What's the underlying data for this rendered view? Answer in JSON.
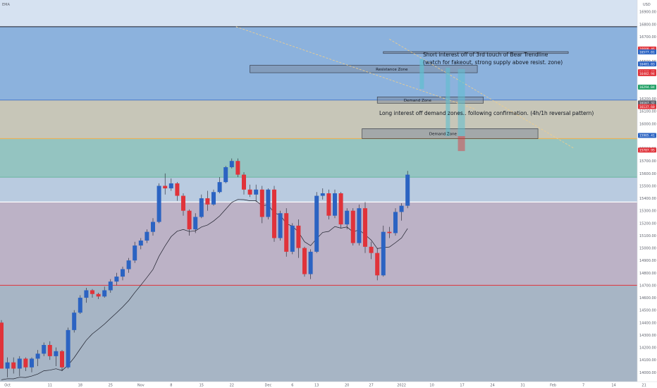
{
  "header": {
    "indicator": "EMA",
    "currency": "USD"
  },
  "chart_data": {
    "type": "candlestick",
    "ylim": [
      13925,
      16995
    ],
    "y_ticks": [
      14000,
      14100,
      14200,
      14300,
      14400,
      14500,
      14600,
      14700,
      14800,
      14900,
      15000,
      15100,
      15200,
      15300,
      15400,
      15500,
      15600,
      15700,
      15800,
      15900,
      16000,
      16100,
      16200,
      16300,
      16400,
      16500,
      16600,
      16700,
      16800,
      16900
    ],
    "y_tick_labels": [
      "14000.00",
      "14100.00",
      "14200.00",
      "14300.00",
      "14400.00",
      "14500.00",
      "14600.00",
      "14700.00",
      "14800.00",
      "14900.00",
      "15000.00",
      "15100.00",
      "15200.00",
      "15300.00",
      "15400.00",
      "15500.00",
      "15600.00",
      "15700.00",
      "15800.00",
      "15900.00",
      "16000.00",
      "16100.00",
      "16200.00",
      "16300.00",
      "16400.00",
      "16500.00",
      "16600.00",
      "16700.00",
      "16800.00",
      "16900.00"
    ],
    "x_ticks": [
      {
        "label": "Oct",
        "bar": 1
      },
      {
        "label": "11",
        "bar": 8
      },
      {
        "label": "18",
        "bar": 13
      },
      {
        "label": "25",
        "bar": 18
      },
      {
        "label": "Nov",
        "bar": 23
      },
      {
        "label": "8",
        "bar": 28
      },
      {
        "label": "15",
        "bar": 33
      },
      {
        "label": "22",
        "bar": 38
      },
      {
        "label": "Dec",
        "bar": 44
      },
      {
        "label": "6",
        "bar": 48
      },
      {
        "label": "13",
        "bar": 52
      },
      {
        "label": "20",
        "bar": 57
      },
      {
        "label": "27",
        "bar": 61
      },
      {
        "label": "2022",
        "bar": 66
      },
      {
        "label": "10",
        "bar": 71
      },
      {
        "label": "17",
        "bar": 76
      },
      {
        "label": "24",
        "bar": 81
      },
      {
        "label": "31",
        "bar": 86
      },
      {
        "label": "Feb",
        "bar": 91
      },
      {
        "label": "7",
        "bar": 96
      },
      {
        "label": "14",
        "bar": 101
      },
      {
        "label": "21",
        "bar": 106
      }
    ],
    "candles": [
      [
        14400,
        14420,
        14030,
        14030
      ],
      [
        14030,
        14120,
        13960,
        14080
      ],
      [
        14080,
        14120,
        13990,
        14030
      ],
      [
        14030,
        14130,
        13970,
        14110
      ],
      [
        14110,
        14120,
        14010,
        14040
      ],
      [
        14040,
        14120,
        14000,
        14110
      ],
      [
        14110,
        14180,
        14050,
        14150
      ],
      [
        14150,
        14240,
        14130,
        14220
      ],
      [
        14220,
        14250,
        14100,
        14130
      ],
      [
        14130,
        14200,
        14050,
        14170
      ],
      [
        14170,
        14180,
        14010,
        14040
      ],
      [
        14040,
        14360,
        14030,
        14340
      ],
      [
        14340,
        14500,
        14320,
        14480
      ],
      [
        14480,
        14620,
        14470,
        14600
      ],
      [
        14600,
        14680,
        14560,
        14660
      ],
      [
        14660,
        14670,
        14600,
        14630
      ],
      [
        14630,
        14640,
        14590,
        14610
      ],
      [
        14610,
        14690,
        14600,
        14660
      ],
      [
        14660,
        14750,
        14640,
        14730
      ],
      [
        14730,
        14800,
        14700,
        14770
      ],
      [
        14770,
        14850,
        14740,
        14830
      ],
      [
        14830,
        14920,
        14800,
        14900
      ],
      [
        14900,
        15050,
        14880,
        15020
      ],
      [
        15020,
        15080,
        14990,
        15060
      ],
      [
        15060,
        15150,
        15040,
        15130
      ],
      [
        15130,
        15240,
        15100,
        15210
      ],
      [
        15210,
        15520,
        15200,
        15500
      ],
      [
        15500,
        15600,
        15430,
        15480
      ],
      [
        15480,
        15560,
        15460,
        15520
      ],
      [
        15520,
        15530,
        15380,
        15420
      ],
      [
        15420,
        15440,
        15260,
        15300
      ],
      [
        15300,
        15310,
        15100,
        15150
      ],
      [
        15150,
        15280,
        15120,
        15250
      ],
      [
        15250,
        15430,
        15240,
        15400
      ],
      [
        15400,
        15460,
        15300,
        15350
      ],
      [
        15350,
        15470,
        15340,
        15450
      ],
      [
        15450,
        15570,
        15440,
        15530
      ],
      [
        15530,
        15660,
        15520,
        15650
      ],
      [
        15650,
        15720,
        15640,
        15700
      ],
      [
        15700,
        15720,
        15570,
        15590
      ],
      [
        15590,
        15610,
        15430,
        15470
      ],
      [
        15470,
        15510,
        15410,
        15430
      ],
      [
        15430,
        15510,
        15370,
        15470
      ],
      [
        15470,
        15500,
        15200,
        15250
      ],
      [
        15250,
        15480,
        15230,
        15470
      ],
      [
        15470,
        15500,
        15050,
        15080
      ],
      [
        15080,
        15300,
        15060,
        15280
      ],
      [
        15280,
        15320,
        14930,
        14970
      ],
      [
        14970,
        15200,
        14950,
        15180
      ],
      [
        15180,
        15230,
        14920,
        15000
      ],
      [
        15000,
        15010,
        14770,
        14790
      ],
      [
        14790,
        14990,
        14750,
        14970
      ],
      [
        14970,
        15450,
        14960,
        15420
      ],
      [
        15420,
        15480,
        15390,
        15440
      ],
      [
        15440,
        15470,
        15230,
        15260
      ],
      [
        15260,
        15470,
        15240,
        15440
      ],
      [
        15440,
        15450,
        15160,
        15190
      ],
      [
        15190,
        15320,
        15150,
        15300
      ],
      [
        15300,
        15320,
        15020,
        15040
      ],
      [
        15040,
        15350,
        15020,
        15320
      ],
      [
        15320,
        15370,
        14960,
        15010
      ],
      [
        15010,
        15050,
        14910,
        14960
      ],
      [
        14960,
        15000,
        14740,
        14780
      ],
      [
        14780,
        15180,
        14770,
        15130
      ],
      [
        15130,
        15170,
        15080,
        15120
      ],
      [
        15120,
        15320,
        15100,
        15290
      ],
      [
        15290,
        15360,
        15220,
        15340
      ],
      [
        15340,
        15620,
        15320,
        15590
      ],
      [
        15590,
        15640,
        15410,
        15460
      ],
      [
        15460,
        15580,
        15320,
        15350
      ],
      [
        15350,
        15420,
        15240,
        15270
      ],
      [
        15270,
        15400,
        15240,
        15380
      ],
      [
        15380,
        15390,
        15180,
        15220
      ],
      [
        15220,
        15340,
        15200,
        15320
      ],
      [
        15320,
        15330,
        15140,
        15170
      ],
      [
        15170,
        15190,
        14980,
        15000
      ],
      [
        15000,
        15020,
        14870,
        14890
      ],
      [
        14890,
        15010,
        14850,
        14930
      ],
      [
        14930,
        15090,
        14910,
        15060
      ],
      [
        15060,
        15190,
        15040,
        15160
      ],
      [
        15160,
        15370,
        15140,
        15350
      ],
      [
        15350,
        15580,
        15340,
        15560
      ],
      [
        15560,
        15660,
        15550,
        15630
      ],
      [
        15630,
        15740,
        15560,
        15700
      ],
      [
        15700,
        15710,
        15520,
        15530
      ],
      [
        15530,
        15540,
        15440,
        15450
      ],
      [
        15450,
        15460,
        15390,
        15410
      ],
      [
        15410,
        15420,
        15360,
        15380
      ],
      [
        15380,
        15400,
        15340,
        15350
      ],
      [
        15350,
        15360,
        15320,
        15330
      ],
      [
        15330,
        15340,
        15310,
        15320
      ],
      [
        15320,
        15330,
        15300,
        15310
      ]
    ],
    "series": [],
    "price_badges": [
      {
        "value": 16600.46,
        "label": "16600.46",
        "color": "#e0333a"
      },
      {
        "value": 16577.01,
        "label": "16577.01",
        "color": "#2b63c2"
      },
      {
        "value": 16481.03,
        "label": "16481.03",
        "color": "#2b63c2"
      },
      {
        "value": 16418.42,
        "label": "16418.42",
        "color": "#e0333a"
      },
      {
        "value": 16402.94,
        "label": "16402.94",
        "color": "#e0333a"
      },
      {
        "value": 16294.04,
        "label": "16294.04",
        "color": "#26a269"
      },
      {
        "value": 16167.32,
        "label": "16167.32",
        "color": "#5d606b"
      },
      {
        "value": 16137.6,
        "label": "16137.60",
        "color": "#e0333a"
      },
      {
        "value": 15905.41,
        "label": "15905.41",
        "color": "#2b63c2"
      },
      {
        "value": 15787.95,
        "label": "15787.95",
        "color": "#e0333a"
      }
    ],
    "zones": [
      {
        "label": "Resistance Zone"
      },
      {
        "label": "Demand Zone"
      },
      {
        "label": "Demand Zone"
      }
    ],
    "annotations": [
      {
        "text": "Short interest off of 3rd touch of Bear Trendline"
      },
      {
        "text": "(watch for fakeout, strong supply above resist. zone)"
      },
      {
        "text": "Long interest off demand zones.. following confirmation. (4h/1h reversal pattern)"
      }
    ],
    "grid": false
  }
}
